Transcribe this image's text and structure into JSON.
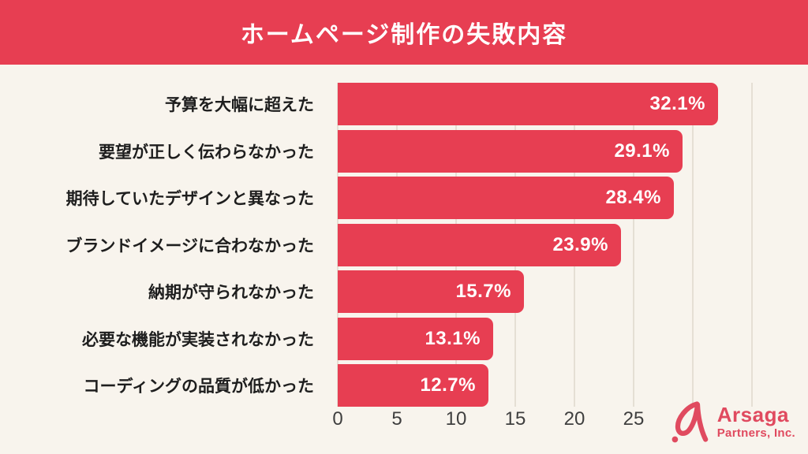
{
  "header": {
    "title": "ホームページ制作の失敗内容"
  },
  "chart_data": {
    "type": "bar",
    "orientation": "horizontal",
    "title": "ホームページ制作の失敗内容",
    "categories": [
      "予算を大幅に超えた",
      "要望が正しく伝わらなかった",
      "期待していたデザインと異なった",
      "ブランドイメージに合わなかった",
      "納期が守られなかった",
      "必要な機能が実装されなかった",
      "コーディングの品質が低かった"
    ],
    "values": [
      32.1,
      29.1,
      28.4,
      23.9,
      15.7,
      13.1,
      12.7
    ],
    "value_labels": [
      "32.1%",
      "29.1%",
      "28.4%",
      "23.9%",
      "15.7%",
      "13.1%",
      "12.7%"
    ],
    "xlim": [
      0,
      35
    ],
    "x_ticks": [
      0,
      5,
      10,
      15,
      20,
      25
    ],
    "grid_ticks": [
      0,
      5,
      10,
      15,
      20,
      25,
      30,
      35
    ],
    "grid": true,
    "bar_color": "#e73e52",
    "header_color": "#e73e52",
    "background_color": "#f8f4ed",
    "value_label_color": "#ffffff",
    "category_label_color": "#1e1e1e"
  },
  "logo": {
    "name": "Arsaga",
    "suffix": "Partners, Inc.",
    "mark": "arsaga-a-icon",
    "color": "#e04a5f"
  }
}
